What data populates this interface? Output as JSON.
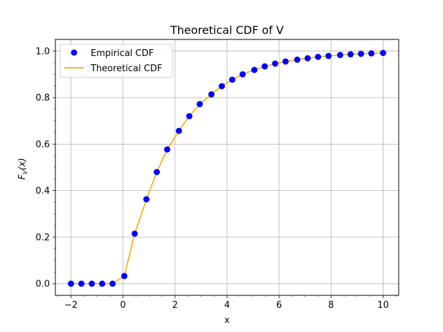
{
  "chart_data": {
    "type": "scatter",
    "title": "Theoretical CDF of V",
    "xlabel": "x",
    "ylabel": "F_V(x)",
    "xlim": [
      -2.6,
      10.6
    ],
    "ylim": [
      -0.05,
      1.05
    ],
    "grid": true,
    "legend_placement": "top-left",
    "x_ticks": [
      -2,
      0,
      2,
      4,
      6,
      8,
      10
    ],
    "x_tick_labels": [
      "−2",
      "0",
      "2",
      "4",
      "6",
      "8",
      "10"
    ],
    "y_ticks": [
      0.0,
      0.2,
      0.4,
      0.6,
      0.8,
      1.0
    ],
    "y_tick_labels": [
      "0.0",
      "0.2",
      "0.4",
      "0.6",
      "0.8",
      "1.0"
    ],
    "series": [
      {
        "name": "Empirical CDF",
        "kind": "scatter",
        "color": "#0000ff",
        "x": [
          -2.0,
          -1.6,
          -1.2,
          -0.8,
          -0.4,
          0.05,
          0.45,
          0.9,
          1.3,
          1.7,
          2.15,
          2.55,
          2.95,
          3.4,
          3.8,
          4.2,
          4.6,
          5.05,
          5.45,
          5.85,
          6.25,
          6.7,
          7.1,
          7.5,
          7.9,
          8.35,
          8.75,
          9.15,
          9.55,
          10.0
        ],
        "y": [
          0.0,
          0.0,
          0.0,
          0.0,
          0.0,
          0.033,
          0.215,
          0.363,
          0.48,
          0.577,
          0.657,
          0.72,
          0.772,
          0.814,
          0.849,
          0.877,
          0.9,
          0.919,
          0.934,
          0.946,
          0.955,
          0.963,
          0.969,
          0.975,
          0.979,
          0.983,
          0.986,
          0.988,
          0.99,
          0.992
        ]
      },
      {
        "name": "Theoretical CDF",
        "kind": "line",
        "color": "#ffa500",
        "x": [
          -2.0,
          -1.6,
          -1.2,
          -0.8,
          -0.4,
          0.05,
          0.45,
          0.9,
          1.3,
          1.7,
          2.15,
          2.55,
          2.95,
          3.4,
          3.8,
          4.2,
          4.6,
          5.05,
          5.45,
          5.85,
          6.25,
          6.7,
          7.1,
          7.5,
          7.9,
          8.35,
          8.75,
          9.15,
          9.55,
          10.0
        ],
        "y": [
          0.0,
          0.0,
          0.0,
          0.0,
          0.0,
          0.033,
          0.215,
          0.363,
          0.48,
          0.577,
          0.657,
          0.72,
          0.772,
          0.814,
          0.849,
          0.877,
          0.9,
          0.919,
          0.934,
          0.946,
          0.955,
          0.963,
          0.969,
          0.975,
          0.979,
          0.983,
          0.986,
          0.988,
          0.99,
          0.992
        ]
      }
    ],
    "colors": {
      "grid": "#b0b0b0",
      "axes": "#000000"
    }
  }
}
